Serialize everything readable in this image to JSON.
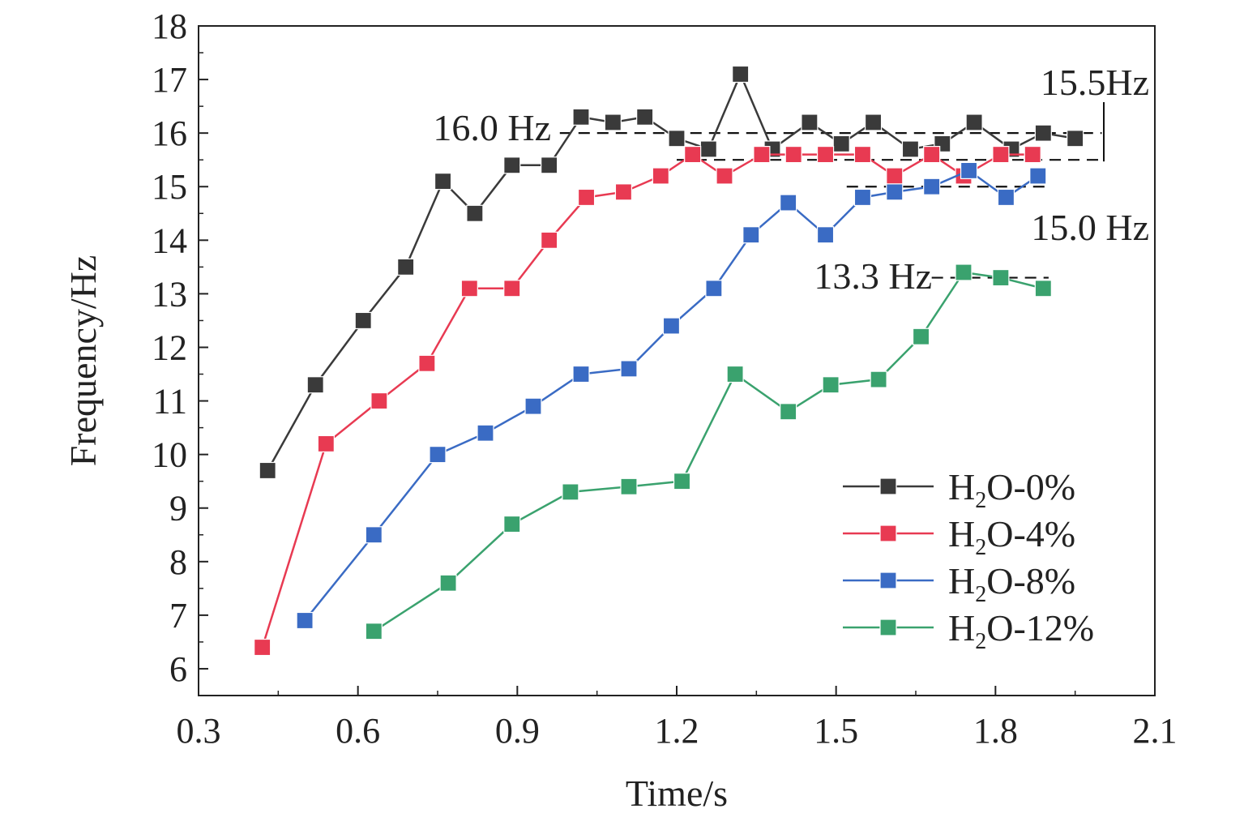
{
  "chart_data": {
    "type": "line",
    "xlabel": "Time/s",
    "ylabel": "Frequency/Hz",
    "xlim": [
      0.3,
      2.1
    ],
    "ylim": [
      5.5,
      18
    ],
    "x_ticks": [
      "0.3",
      "0.6",
      "0.9",
      "1.2",
      "1.5",
      "1.8",
      "2.1"
    ],
    "y_ticks": [
      "6",
      "7",
      "8",
      "9",
      "10",
      "11",
      "12",
      "13",
      "14",
      "15",
      "16",
      "17",
      "18"
    ],
    "series": [
      {
        "name": "H2O-0%",
        "legend_main": "H",
        "legend_sub": "2",
        "legend_rest": "O-0%",
        "color": "#3a3a3a",
        "x": [
          0.43,
          0.52,
          0.61,
          0.69,
          0.76,
          0.82,
          0.89,
          0.96,
          1.02,
          1.08,
          1.14,
          1.2,
          1.26,
          1.32,
          1.38,
          1.45,
          1.51,
          1.57,
          1.64,
          1.7,
          1.76,
          1.83,
          1.89,
          1.95
        ],
        "values": [
          9.7,
          11.3,
          12.5,
          13.5,
          15.1,
          14.5,
          15.4,
          15.4,
          16.3,
          16.2,
          16.3,
          15.9,
          15.7,
          17.1,
          15.7,
          16.2,
          15.8,
          16.2,
          15.7,
          15.8,
          16.2,
          15.7,
          16.0,
          15.9
        ]
      },
      {
        "name": "H2O-4%",
        "legend_main": "H",
        "legend_sub": "2",
        "legend_rest": "O-4%",
        "color": "#e83a52",
        "x": [
          0.42,
          0.54,
          0.64,
          0.73,
          0.81,
          0.89,
          0.96,
          1.03,
          1.1,
          1.17,
          1.23,
          1.29,
          1.36,
          1.42,
          1.48,
          1.55,
          1.61,
          1.68,
          1.74,
          1.81,
          1.87
        ],
        "values": [
          6.4,
          10.2,
          11.0,
          11.7,
          13.1,
          13.1,
          14.0,
          14.8,
          14.9,
          15.2,
          15.6,
          15.2,
          15.6,
          15.6,
          15.6,
          15.6,
          15.2,
          15.6,
          15.2,
          15.6,
          15.6
        ]
      },
      {
        "name": "H2O-8%",
        "legend_main": "H",
        "legend_sub": "2",
        "legend_rest": "O-8%",
        "color": "#3a6bc4",
        "x": [
          0.5,
          0.63,
          0.75,
          0.84,
          0.93,
          1.02,
          1.11,
          1.19,
          1.27,
          1.34,
          1.41,
          1.48,
          1.55,
          1.61,
          1.68,
          1.75,
          1.82,
          1.88
        ],
        "values": [
          6.9,
          8.5,
          10.0,
          10.4,
          10.9,
          11.5,
          11.6,
          12.4,
          13.1,
          14.1,
          14.7,
          14.1,
          14.8,
          14.9,
          15.0,
          15.3,
          14.8,
          15.2
        ]
      },
      {
        "name": "H2O-12%",
        "legend_main": "H",
        "legend_sub": "2",
        "legend_rest": "O-12%",
        "color": "#3aa26e",
        "x": [
          0.63,
          0.77,
          0.89,
          1.0,
          1.11,
          1.21,
          1.31,
          1.41,
          1.49,
          1.58,
          1.66,
          1.74,
          1.81,
          1.89
        ],
        "values": [
          6.7,
          7.6,
          8.7,
          9.3,
          9.4,
          9.5,
          11.5,
          10.8,
          11.3,
          11.4,
          12.2,
          13.4,
          13.3,
          13.1
        ]
      }
    ],
    "reference_lines": [
      {
        "value": 16.0,
        "x_from": 0.98,
        "x_to": 2.0,
        "label": "16.0 Hz"
      },
      {
        "value": 15.5,
        "x_from": 1.2,
        "x_to": 2.0,
        "label": "15.5Hz"
      },
      {
        "value": 15.0,
        "x_from": 1.52,
        "x_to": 1.9,
        "label": "15.0 Hz"
      },
      {
        "value": 13.3,
        "x_from": 1.68,
        "x_to": 1.9,
        "label": "13.3 Hz"
      }
    ]
  }
}
